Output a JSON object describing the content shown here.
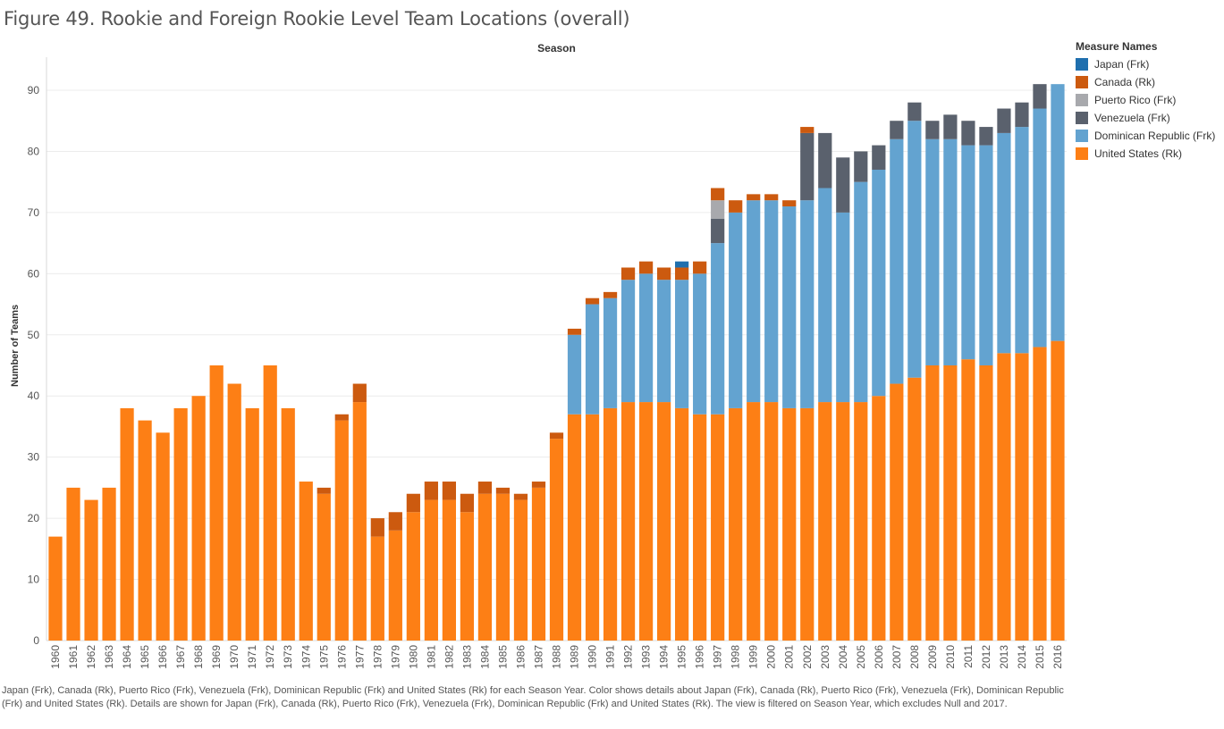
{
  "title": "Figure 49. Rookie and Foreign Rookie Level Team Locations (overall)",
  "season_header": "Season",
  "caption": "Japan (Frk), Canada (Rk), Puerto Rico (Frk), Venezuela (Frk), Dominican Republic (Frk) and United States (Rk) for each Season Year.  Color shows details about Japan (Frk), Canada (Rk), Puerto Rico (Frk), Venezuela (Frk), Dominican Republic (Frk) and United States (Rk).  Details are shown for Japan (Frk), Canada (Rk), Puerto Rico (Frk), Venezuela (Frk), Dominican Republic (Frk) and United States (Rk). The view is filtered on Season Year, which excludes Null and 2017.",
  "legend": {
    "title": "Measure Names",
    "items": [
      {
        "label": "Japan (Frk)",
        "color": "#1f6fae"
      },
      {
        "label": "Canada (Rk)",
        "color": "#cc5a0f"
      },
      {
        "label": "Puerto Rico (Frk)",
        "color": "#a8a9ad"
      },
      {
        "label": "Venezuela (Frk)",
        "color": "#5a616d"
      },
      {
        "label": "Dominican Republic (Frk)",
        "color": "#63a3d0"
      },
      {
        "label": "United States (Rk)",
        "color": "#fd7f15"
      }
    ]
  },
  "chart_data": {
    "type": "bar",
    "stacked": true,
    "title": "Figure 49. Rookie and Foreign Rookie Level Team Locations (overall)",
    "xlabel": "Season",
    "ylabel": "Number of Teams",
    "ylim": [
      0,
      92
    ],
    "yticks": [
      0,
      10,
      20,
      30,
      40,
      50,
      60,
      70,
      80,
      90
    ],
    "grid": true,
    "legend_position": "right",
    "categories": [
      "1960",
      "1961",
      "1962",
      "1963",
      "1964",
      "1965",
      "1966",
      "1967",
      "1968",
      "1969",
      "1970",
      "1971",
      "1972",
      "1973",
      "1974",
      "1975",
      "1976",
      "1977",
      "1978",
      "1979",
      "1980",
      "1981",
      "1982",
      "1983",
      "1984",
      "1985",
      "1986",
      "1987",
      "1988",
      "1989",
      "1990",
      "1991",
      "1992",
      "1993",
      "1994",
      "1995",
      "1996",
      "1997",
      "1998",
      "1999",
      "2000",
      "2001",
      "2002",
      "2003",
      "2004",
      "2005",
      "2006",
      "2007",
      "2008",
      "2009",
      "2010",
      "2011",
      "2012",
      "2013",
      "2014",
      "2015",
      "2016"
    ],
    "series": [
      {
        "name": "United States (Rk)",
        "color": "#fd7f15",
        "values": [
          17,
          25,
          23,
          25,
          38,
          36,
          34,
          38,
          40,
          45,
          42,
          38,
          45,
          38,
          26,
          24,
          36,
          39,
          17,
          18,
          21,
          23,
          23,
          21,
          24,
          24,
          23,
          25,
          33,
          37,
          37,
          38,
          39,
          39,
          39,
          38,
          37,
          37,
          38,
          39,
          39,
          38,
          38,
          39,
          39,
          39,
          40,
          42,
          43,
          45,
          45,
          46,
          45,
          47,
          47,
          48,
          49
        ]
      },
      {
        "name": "Dominican Republic (Frk)",
        "color": "#63a3d0",
        "values": [
          0,
          0,
          0,
          0,
          0,
          0,
          0,
          0,
          0,
          0,
          0,
          0,
          0,
          0,
          0,
          0,
          0,
          0,
          0,
          0,
          0,
          0,
          0,
          0,
          0,
          0,
          0,
          0,
          0,
          13,
          18,
          18,
          20,
          21,
          20,
          21,
          23,
          28,
          32,
          33,
          33,
          33,
          34,
          35,
          31,
          36,
          37,
          40,
          42,
          37,
          37,
          35,
          36,
          36,
          37,
          39,
          42
        ]
      },
      {
        "name": "Venezuela (Frk)",
        "color": "#5a616d",
        "values": [
          0,
          0,
          0,
          0,
          0,
          0,
          0,
          0,
          0,
          0,
          0,
          0,
          0,
          0,
          0,
          0,
          0,
          0,
          0,
          0,
          0,
          0,
          0,
          0,
          0,
          0,
          0,
          0,
          0,
          0,
          0,
          0,
          0,
          0,
          0,
          0,
          0,
          4,
          0,
          0,
          0,
          0,
          11,
          9,
          9,
          5,
          4,
          3,
          3,
          3,
          4,
          4,
          3,
          4,
          4,
          4,
          0
        ]
      },
      {
        "name": "Puerto Rico (Frk)",
        "color": "#a8a9ad",
        "values": [
          0,
          0,
          0,
          0,
          0,
          0,
          0,
          0,
          0,
          0,
          0,
          0,
          0,
          0,
          0,
          0,
          0,
          0,
          0,
          0,
          0,
          0,
          0,
          0,
          0,
          0,
          0,
          0,
          0,
          0,
          0,
          0,
          0,
          0,
          0,
          0,
          0,
          3,
          0,
          0,
          0,
          0,
          0,
          0,
          0,
          0,
          0,
          0,
          0,
          0,
          0,
          0,
          0,
          0,
          0,
          0,
          0
        ]
      },
      {
        "name": "Canada (Rk)",
        "color": "#cc5a0f",
        "values": [
          0,
          0,
          0,
          0,
          0,
          0,
          0,
          0,
          0,
          0,
          0,
          0,
          0,
          0,
          0,
          1,
          1,
          3,
          3,
          3,
          3,
          3,
          3,
          3,
          2,
          1,
          1,
          1,
          1,
          1,
          1,
          1,
          2,
          2,
          2,
          2,
          2,
          2,
          2,
          1,
          1,
          1,
          1,
          0,
          0,
          0,
          0,
          0,
          0,
          0,
          0,
          0,
          0,
          0,
          0,
          0,
          0
        ]
      },
      {
        "name": "Japan (Frk)",
        "color": "#1f6fae",
        "values": [
          0,
          0,
          0,
          0,
          0,
          0,
          0,
          0,
          0,
          0,
          0,
          0,
          0,
          0,
          0,
          0,
          0,
          0,
          0,
          0,
          0,
          0,
          0,
          0,
          0,
          0,
          0,
          0,
          0,
          0,
          0,
          0,
          0,
          0,
          0,
          1,
          0,
          0,
          0,
          0,
          0,
          0,
          0,
          0,
          0,
          0,
          0,
          0,
          0,
          0,
          0,
          0,
          0,
          0,
          0,
          0,
          0
        ]
      }
    ]
  }
}
